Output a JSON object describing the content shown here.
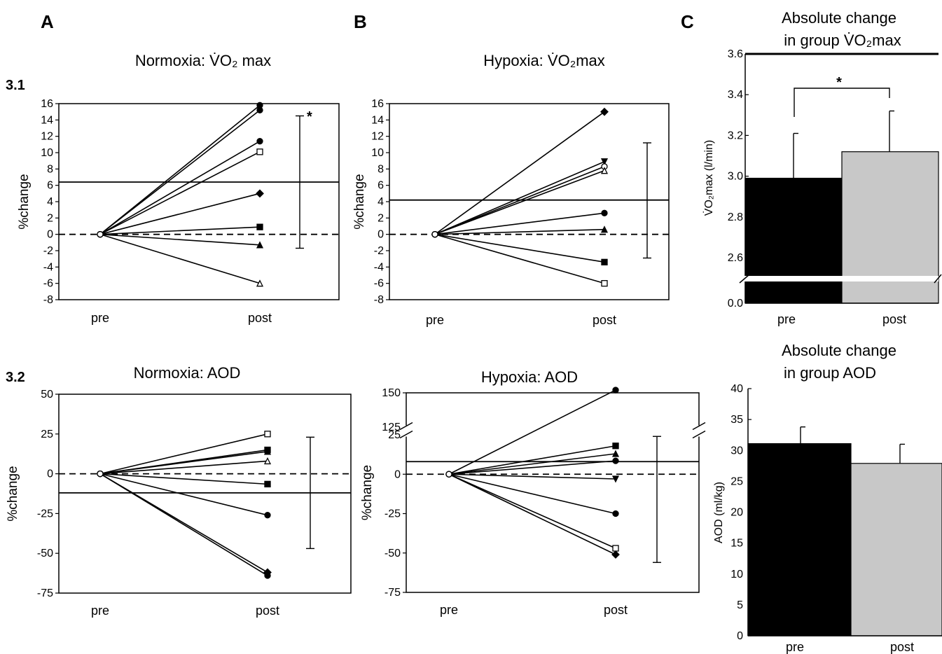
{
  "figure": {
    "panel_labels": [
      "A",
      "B",
      "C"
    ],
    "row_labels": [
      "3.1",
      "3.2"
    ]
  },
  "chart_data": [
    {
      "id": "normoxia_vo2",
      "type": "line",
      "title": "Normoxia: V̇O₂ max",
      "ylabel": "%change",
      "categories": [
        "pre",
        "post"
      ],
      "ylim": [
        -8,
        16
      ],
      "yticks": [
        -8,
        -6,
        -4,
        -2,
        0,
        2,
        4,
        6,
        8,
        10,
        12,
        14,
        16
      ],
      "ytick_labels": [
        "-8",
        "-6",
        "-4",
        "-2",
        "0",
        "2",
        "4",
        "6",
        "8",
        "10",
        "12",
        "14",
        "16"
      ],
      "series": [
        {
          "values": [
            0,
            15.8
          ],
          "marker": "circle-filled"
        },
        {
          "values": [
            0,
            15.2
          ],
          "marker": "circle-filled"
        },
        {
          "values": [
            0,
            11.4
          ],
          "marker": "circle-filled"
        },
        {
          "values": [
            0,
            10.1
          ],
          "marker": "square-open"
        },
        {
          "values": [
            0,
            5.0
          ],
          "marker": "diamond-filled"
        },
        {
          "values": [
            0,
            0.9
          ],
          "marker": "square-filled"
        },
        {
          "values": [
            0,
            -1.3
          ],
          "marker": "triangle-filled"
        },
        {
          "values": [
            0,
            -6.0
          ],
          "marker": "triangle-open"
        }
      ],
      "mean": 6.4,
      "errorbar": {
        "low": -1.7,
        "high": 14.5
      },
      "annotation": "*"
    },
    {
      "id": "hypoxia_vo2",
      "type": "line",
      "title": "Hypoxia: V̇O₂max",
      "ylabel": "%change",
      "categories": [
        "pre",
        "post"
      ],
      "ylim": [
        -8,
        16
      ],
      "yticks": [
        -8,
        -6,
        -4,
        -2,
        0,
        2,
        4,
        6,
        8,
        10,
        12,
        14,
        16
      ],
      "ytick_labels": [
        "-8",
        "-6",
        "-4",
        "-2",
        "0",
        "2",
        "4",
        "6",
        "8",
        "10",
        "12",
        "14",
        "16"
      ],
      "series": [
        {
          "values": [
            0,
            15.0
          ],
          "marker": "diamond-filled"
        },
        {
          "values": [
            0,
            8.9
          ],
          "marker": "triangle-down-filled"
        },
        {
          "values": [
            0,
            8.3
          ],
          "marker": "circle-open"
        },
        {
          "values": [
            0,
            7.8
          ],
          "marker": "triangle-open"
        },
        {
          "values": [
            0,
            2.6
          ],
          "marker": "circle-filled"
        },
        {
          "values": [
            0,
            0.6
          ],
          "marker": "triangle-filled"
        },
        {
          "values": [
            0,
            -3.4
          ],
          "marker": "square-filled"
        },
        {
          "values": [
            0,
            -6.0
          ],
          "marker": "square-open"
        }
      ],
      "mean": 4.2,
      "errorbar": {
        "low": -2.9,
        "high": 11.2
      }
    },
    {
      "id": "vo2_group",
      "type": "bar",
      "title": "Absolute change in group V̇O₂max",
      "title_lines": [
        "Absolute change",
        "in group V̇O₂max"
      ],
      "ylabel": "V̇O₂max (l/min)",
      "categories": [
        "pre",
        "post"
      ],
      "values": [
        2.99,
        3.12
      ],
      "errors": [
        0.22,
        0.2
      ],
      "colors": [
        "#000000",
        "#c8c8c8"
      ],
      "ylim": [
        2.5,
        3.6
      ],
      "yticks": [
        2.6,
        2.8,
        3.0,
        3.2,
        3.4,
        3.6
      ],
      "ytick_labels": [
        "2.6",
        "2.8",
        "3.0",
        "3.2",
        "3.4",
        "3.6"
      ],
      "axis_break": true,
      "axis_zero_label": "0.0",
      "annotation": "*"
    },
    {
      "id": "normoxia_aod",
      "type": "line",
      "title": "Normoxia: AOD",
      "ylabel": "%change",
      "categories": [
        "pre",
        "post"
      ],
      "ylim": [
        -75,
        50
      ],
      "yticks": [
        -75,
        -50,
        -25,
        0,
        25,
        50
      ],
      "ytick_labels": [
        "-75",
        "-50",
        "-25",
        "0",
        "25",
        "50"
      ],
      "series": [
        {
          "values": [
            0,
            25
          ],
          "marker": "square-open"
        },
        {
          "values": [
            0,
            15
          ],
          "marker": "square-filled"
        },
        {
          "values": [
            0,
            14
          ],
          "marker": "triangle-filled"
        },
        {
          "values": [
            0,
            8
          ],
          "marker": "triangle-open"
        },
        {
          "values": [
            0,
            -6.5
          ],
          "marker": "square-filled"
        },
        {
          "values": [
            0,
            -26
          ],
          "marker": "circle-filled"
        },
        {
          "values": [
            0,
            -62
          ],
          "marker": "diamond-filled"
        },
        {
          "values": [
            0,
            -64
          ],
          "marker": "circle-filled"
        }
      ],
      "mean": -12,
      "errorbar": {
        "low": -47,
        "high": 23
      }
    },
    {
      "id": "hypoxia_aod",
      "type": "line",
      "title": "Hypoxia: AOD",
      "ylabel": "%change",
      "categories": [
        "pre",
        "post"
      ],
      "ylim": [
        -75,
        150
      ],
      "axis_break": {
        "from": 25,
        "to": 125
      },
      "yticks": [
        -75,
        -50,
        -25,
        0,
        25,
        125,
        150
      ],
      "ytick_labels": [
        "-75",
        "-50",
        "-25",
        "0",
        "25",
        "125",
        "150"
      ],
      "series": [
        {
          "values": [
            0,
            152
          ],
          "marker": "circle-filled"
        },
        {
          "values": [
            0,
            18
          ],
          "marker": "square-filled"
        },
        {
          "values": [
            0,
            13
          ],
          "marker": "triangle-filled"
        },
        {
          "values": [
            0,
            8.5
          ],
          "marker": "circle-filled"
        },
        {
          "values": [
            0,
            -3
          ],
          "marker": "triangle-down-filled"
        },
        {
          "values": [
            0,
            -25
          ],
          "marker": "circle-filled"
        },
        {
          "values": [
            0,
            -47
          ],
          "marker": "square-open"
        },
        {
          "values": [
            0,
            -51
          ],
          "marker": "diamond-filled"
        }
      ],
      "mean": 8,
      "errorbar": {
        "low": -56,
        "high": 24
      }
    },
    {
      "id": "aod_group",
      "type": "bar",
      "title": "Absolute change in group AOD",
      "title_lines": [
        "Absolute change",
        "in group AOD"
      ],
      "ylabel": "AOD (ml/kg)",
      "categories": [
        "pre",
        "post"
      ],
      "values": [
        31.1,
        27.9
      ],
      "errors": [
        2.7,
        3.1
      ],
      "colors": [
        "#000000",
        "#c8c8c8"
      ],
      "ylim": [
        0,
        40
      ],
      "yticks": [
        0,
        5,
        10,
        15,
        20,
        25,
        30,
        35,
        40
      ],
      "ytick_labels": [
        "0",
        "5",
        "10",
        "15",
        "20",
        "25",
        "30",
        "35",
        "40"
      ]
    }
  ]
}
